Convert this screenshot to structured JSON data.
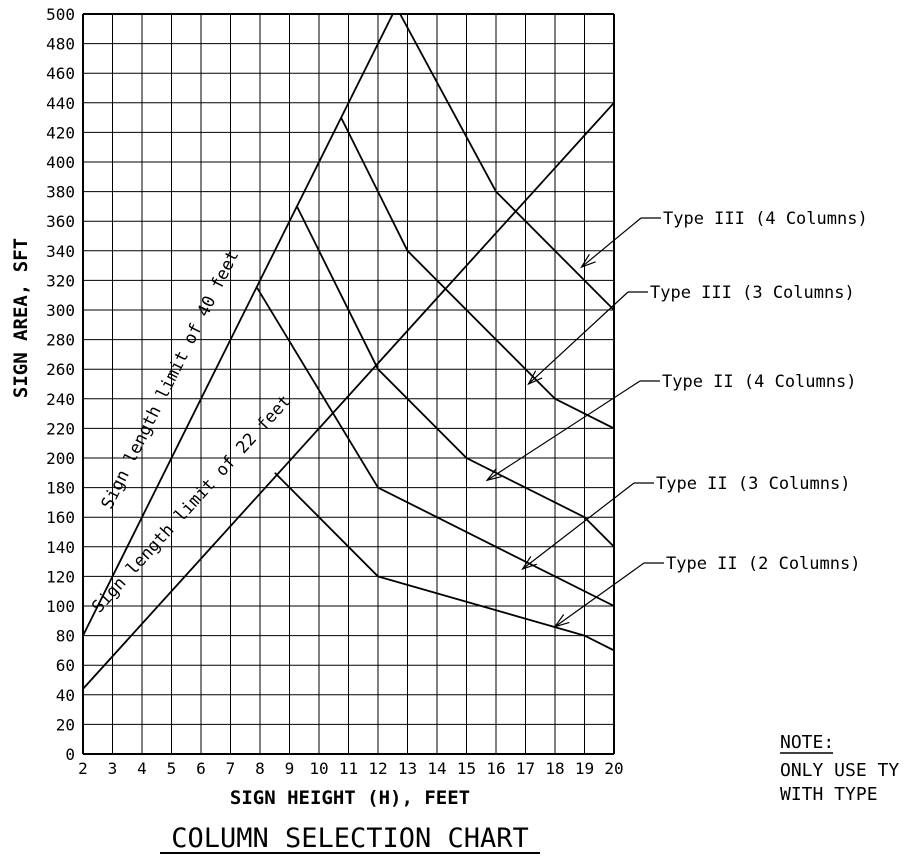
{
  "chart_data": {
    "type": "line",
    "title": "COLUMN SELECTION CHART",
    "xlabel": "SIGN HEIGHT (H), FEET",
    "ylabel": "SIGN AREA, SFT",
    "xlim": [
      2,
      20
    ],
    "ylim": [
      0,
      500
    ],
    "grid": true,
    "x_ticks": [
      2,
      3,
      4,
      5,
      6,
      7,
      8,
      9,
      10,
      11,
      12,
      13,
      14,
      15,
      16,
      17,
      18,
      19,
      20
    ],
    "y_ticks": [
      0,
      20,
      40,
      60,
      80,
      100,
      120,
      140,
      160,
      180,
      200,
      220,
      240,
      260,
      280,
      300,
      320,
      340,
      360,
      380,
      400,
      420,
      440,
      460,
      480,
      500
    ],
    "series": [
      {
        "name": "Sign length limit of 40 feet",
        "x": [
          2,
          12.5
        ],
        "y": [
          80,
          500
        ]
      },
      {
        "name": "Sign length limit of 22 feet",
        "x": [
          2,
          20
        ],
        "y": [
          44,
          440
        ]
      },
      {
        "name": "Type III (4 Columns)",
        "x": [
          12.75,
          16,
          20
        ],
        "y": [
          500,
          380,
          300
        ]
      },
      {
        "name": "Type III (3 Columns)",
        "x": [
          10.75,
          13,
          18,
          20
        ],
        "y": [
          430,
          340,
          240,
          220
        ]
      },
      {
        "name": "Type II (4 Columns)",
        "x": [
          9.25,
          12,
          15,
          19,
          20
        ],
        "y": [
          370,
          260,
          200,
          160,
          140
        ]
      },
      {
        "name": "Type II (3 Columns)",
        "x": [
          7.9,
          12,
          20
        ],
        "y": [
          315,
          180,
          100
        ]
      },
      {
        "name": "Type II (2 Columns)",
        "x": [
          8.5,
          12,
          19,
          20
        ],
        "y": [
          190,
          120,
          80,
          70
        ]
      }
    ],
    "limit_labels": [
      "Sign length limit of 40 feet",
      "Sign length limit of 22 feet"
    ],
    "annotations": [
      {
        "text": "Type III (4 Columns)",
        "target": [
          18.9,
          329
        ]
      },
      {
        "text": "Type III (3 Columns)",
        "target": [
          17.1,
          250
        ]
      },
      {
        "text": "Type II (4 Columns)",
        "target": [
          15.7,
          185
        ]
      },
      {
        "text": "Type II (3 Columns)",
        "target": [
          16.9,
          125
        ]
      },
      {
        "text": "Type II (2 Columns)",
        "target": [
          18,
          86
        ]
      }
    ],
    "note": {
      "heading": "NOTE:",
      "lines": [
        "ONLY USE TY",
        "WITH TYPE"
      ]
    }
  }
}
